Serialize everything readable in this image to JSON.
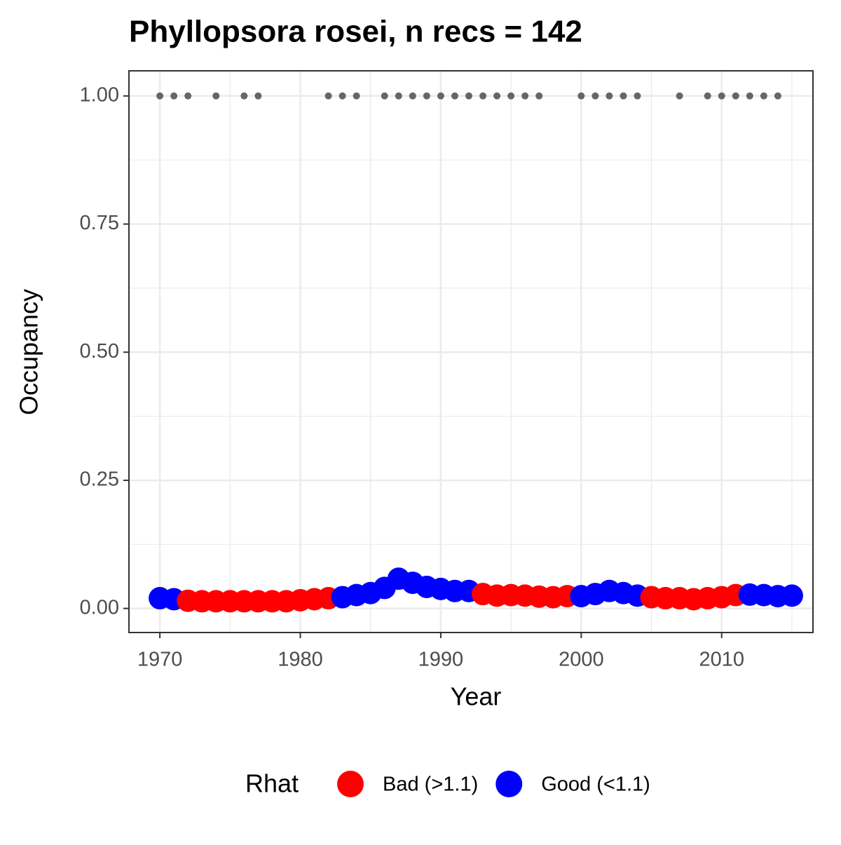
{
  "chart_data": {
    "type": "scatter",
    "title": "Phyllopsora rosei, n recs = 142",
    "x_label": "Year",
    "y_label": "Occupancy",
    "legend_title": "Rhat",
    "legend_position": "bottom",
    "grid": true,
    "xlim": [
      1967.8,
      2016.5
    ],
    "ylim": [
      -0.047,
      1.049
    ],
    "xticks": [
      1970,
      1980,
      1990,
      2000,
      2010
    ],
    "yticks": [
      {
        "value": 0,
        "label": "0.00"
      },
      {
        "value": 0.25,
        "label": "0.25"
      },
      {
        "value": 0.5,
        "label": "0.50"
      },
      {
        "value": 0.75,
        "label": "0.75"
      },
      {
        "value": 1,
        "label": "1.00"
      }
    ],
    "x": [
      1970,
      1971,
      1972,
      1973,
      1974,
      1975,
      1976,
      1977,
      1978,
      1979,
      1980,
      1981,
      1982,
      1983,
      1984,
      1985,
      1986,
      1987,
      1988,
      1989,
      1990,
      1991,
      1992,
      1993,
      1994,
      1995,
      1996,
      1997,
      1998,
      1999,
      2000,
      2001,
      2002,
      2003,
      2004,
      2005,
      2006,
      2007,
      2008,
      2009,
      2010,
      2011,
      2012,
      2013,
      2014,
      2015
    ],
    "series": [
      {
        "name": "Bad (>1.1)",
        "color": "#ff0000",
        "values": [
          null,
          null,
          0.015,
          0.014,
          0.014,
          0.014,
          0.014,
          0.014,
          0.014,
          0.014,
          0.016,
          0.018,
          0.02,
          null,
          null,
          null,
          null,
          null,
          null,
          null,
          null,
          null,
          null,
          0.028,
          0.025,
          0.026,
          0.025,
          0.023,
          0.022,
          0.024,
          null,
          null,
          null,
          null,
          null,
          0.022,
          0.02,
          0.02,
          0.018,
          0.02,
          0.022,
          0.026,
          null,
          null,
          null,
          null
        ]
      },
      {
        "name": "Good (<1.1)",
        "color": "#0000ff",
        "values": [
          0.02,
          0.018,
          null,
          null,
          null,
          null,
          null,
          null,
          null,
          null,
          null,
          null,
          null,
          0.022,
          0.026,
          0.03,
          0.04,
          0.058,
          0.05,
          0.042,
          0.038,
          0.034,
          0.034,
          null,
          null,
          null,
          null,
          null,
          null,
          null,
          0.024,
          0.028,
          0.034,
          0.03,
          0.025,
          null,
          null,
          null,
          null,
          null,
          null,
          null,
          0.027,
          0.026,
          0.024,
          0.025
        ]
      }
    ],
    "records": {
      "color": "#666666",
      "x": [
        1970,
        1971,
        1972,
        1974,
        1976,
        1977,
        1982,
        1983,
        1984,
        1986,
        1987,
        1988,
        1989,
        1990,
        1991,
        1992,
        1993,
        1994,
        1995,
        1996,
        1997,
        2000,
        2001,
        2002,
        2003,
        2004,
        2007,
        2009,
        2010,
        2011,
        2012,
        2013,
        2014
      ],
      "values": [
        1,
        1,
        1,
        1,
        1,
        1,
        1,
        1,
        1,
        1,
        1,
        1,
        1,
        1,
        1,
        1,
        1,
        1,
        1,
        1,
        1,
        1,
        1,
        1,
        1,
        1,
        1,
        1,
        1,
        1,
        1,
        1,
        1
      ]
    }
  }
}
